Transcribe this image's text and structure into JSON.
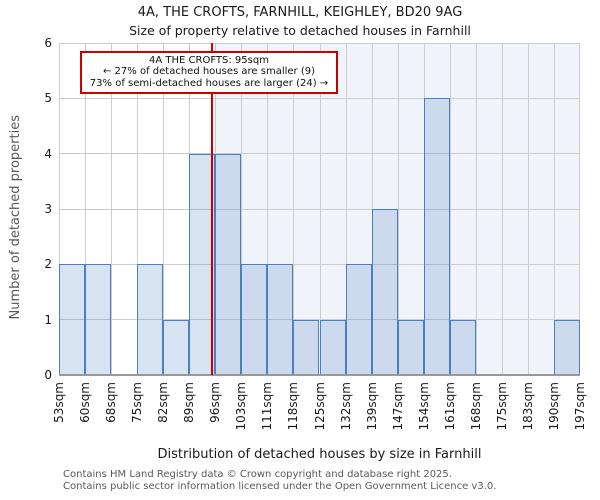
{
  "chart_data": {
    "type": "bar",
    "title_line1": "4A, THE CROFTS, FARNHILL, KEIGHLEY, BD20 9AG",
    "title_line2": "Size of property relative to detached houses in Farnhill",
    "xlabel": "Distribution of detached houses by size in Farnhill",
    "ylabel": "Number of detached properties",
    "bin_edges_sqm": [
      53,
      60,
      68,
      75,
      82,
      89,
      96,
      103,
      111,
      118,
      125,
      132,
      139,
      147,
      154,
      161,
      168,
      175,
      183,
      190,
      197
    ],
    "x_tick_labels": [
      "53sqm",
      "60sqm",
      "68sqm",
      "75sqm",
      "82sqm",
      "89sqm",
      "96sqm",
      "103sqm",
      "111sqm",
      "118sqm",
      "125sqm",
      "132sqm",
      "139sqm",
      "147sqm",
      "154sqm",
      "161sqm",
      "168sqm",
      "175sqm",
      "183sqm",
      "190sqm",
      "197sqm"
    ],
    "values": [
      2,
      2,
      0,
      2,
      1,
      4,
      4,
      2,
      2,
      1,
      1,
      2,
      3,
      1,
      5,
      1,
      0,
      0,
      0,
      1
    ],
    "ylim": [
      0,
      6
    ],
    "yticks": [
      0,
      1,
      2,
      3,
      4,
      5,
      6
    ],
    "grid": true,
    "marker": {
      "value_sqm": 95,
      "color": "#cc0000"
    },
    "annotation": {
      "line1": "4A THE CROFTS: 95sqm",
      "line2": "← 27% of detached houses are smaller (9)",
      "line3": "73% of semi-detached houses are larger (24) →"
    },
    "colors": {
      "bar_fill": "rgba(79,129,189,0.22)",
      "bar_border": "#4a80c0",
      "shaded_region": "#f1f4fb",
      "gridline": "#cccccc",
      "axis_line": "#999999",
      "marker_line": "#cc0000",
      "annotation_border": "#cc0000"
    }
  },
  "footer": {
    "line1": "Contains HM Land Registry data © Crown copyright and database right 2025.",
    "line2": "Contains public sector information licensed under the Open Government Licence v3.0."
  }
}
